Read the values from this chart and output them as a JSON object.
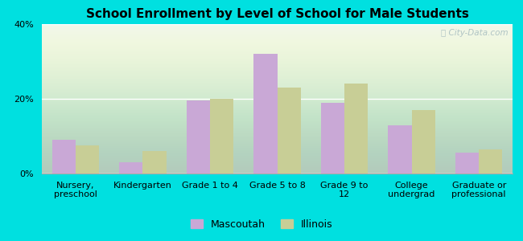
{
  "title": "School Enrollment by Level of School for Male Students",
  "categories": [
    "Nursery,\npreschool",
    "Kindergarten",
    "Grade 1 to 4",
    "Grade 5 to 8",
    "Grade 9 to\n12",
    "College\nundergrad",
    "Graduate or\nprofessional"
  ],
  "mascoutah": [
    9,
    3,
    19.5,
    32,
    19,
    13,
    5.5
  ],
  "illinois": [
    7.5,
    6,
    20,
    23,
    24,
    17,
    6.5
  ],
  "mascoutah_color": "#c9a8d6",
  "illinois_color": "#c8ce96",
  "background_color": "#00e0e0",
  "plot_bg_color": "#e8f4e4",
  "ylim": [
    0,
    40
  ],
  "yticks": [
    0,
    20,
    40
  ],
  "ytick_labels": [
    "0%",
    "20%",
    "40%"
  ],
  "bar_width": 0.35,
  "legend_mascoutah": "Mascoutah",
  "legend_illinois": "Illinois",
  "title_fontsize": 11,
  "tick_fontsize": 8,
  "legend_fontsize": 9,
  "watermark_text": "ⓘ City-Data.com"
}
